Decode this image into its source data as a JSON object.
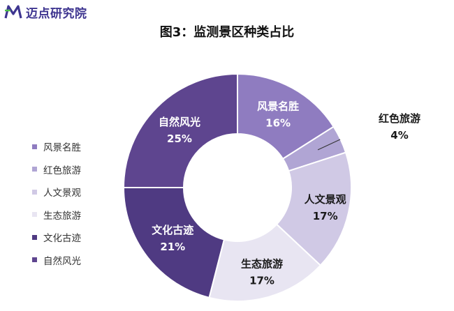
{
  "brand": {
    "name": "迈点研究院",
    "color": "#3e3590"
  },
  "chart_data": {
    "type": "pie",
    "donut": true,
    "title": "图3：监测景区种类占比",
    "legend_position": "left",
    "categories": [
      "风景名胜",
      "红色旅游",
      "人文景观",
      "生态旅游",
      "文化古迹",
      "自然风光"
    ],
    "values": [
      16,
      4,
      17,
      17,
      21,
      25
    ],
    "value_labels": [
      "16%",
      "4%",
      "17%",
      "17%",
      "21%",
      "25%"
    ],
    "colors": [
      "#8f7cc0",
      "#b0a5d4",
      "#d0c9e5",
      "#e8e5f2",
      "#4f3a82",
      "#5e458f"
    ]
  }
}
